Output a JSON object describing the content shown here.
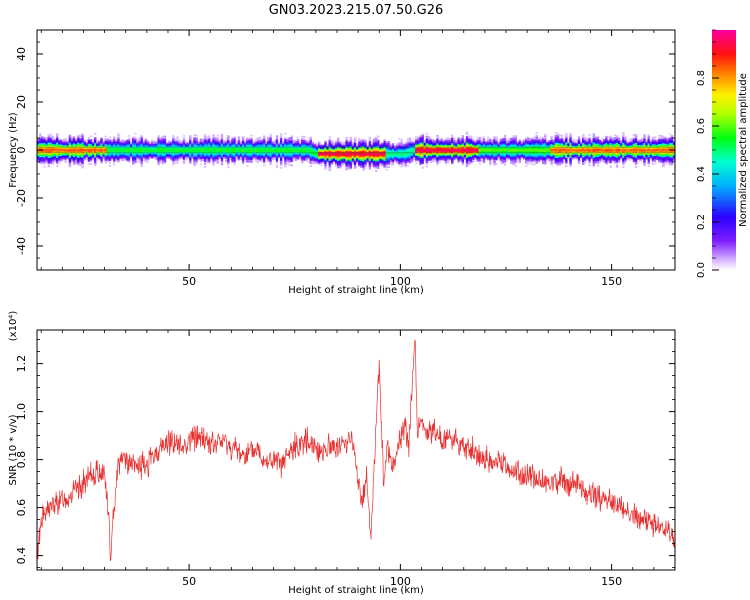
{
  "figure_title": "GN03.2023.215.07.50.G26",
  "chart_data": [
    {
      "type": "heatmap",
      "xlabel": "Height of straight line (km)",
      "ylabel": "Frequency (Hz)",
      "xlim": [
        14,
        165
      ],
      "ylim": [
        -50,
        50
      ],
      "x_ticks": [
        50,
        100,
        150
      ],
      "y_ticks": [
        -40,
        -20,
        0,
        20,
        40
      ],
      "colorbar": {
        "label": "Normalized spectral amplitude",
        "range": [
          0,
          1
        ],
        "ticks": [
          0.0,
          0.2,
          0.4,
          0.6,
          0.8
        ]
      },
      "grid": false,
      "band_center_hz": [
        {
          "x": 14,
          "f": 0.0
        },
        {
          "x": 78,
          "f": 0.0
        },
        {
          "x": 80,
          "f": -1.5
        },
        {
          "x": 101,
          "f": -1.5
        },
        {
          "x": 103,
          "f": 0.0
        },
        {
          "x": 165,
          "f": 0.0
        }
      ],
      "peak_amplitude_segments": [
        {
          "x_start": 14,
          "x_end": 30,
          "level": 0.85
        },
        {
          "x_start": 30,
          "x_end": 80,
          "level": 0.55
        },
        {
          "x_start": 80,
          "x_end": 96,
          "level": 0.95
        },
        {
          "x_start": 96,
          "x_end": 103,
          "level": 0.5
        },
        {
          "x_start": 103,
          "x_end": 118,
          "level": 0.95
        },
        {
          "x_start": 118,
          "x_end": 135,
          "level": 0.6
        },
        {
          "x_start": 135,
          "x_end": 165,
          "level": 0.85
        }
      ]
    },
    {
      "type": "line",
      "xlabel": "Height of straight line (km)",
      "ylabel": "SNR (10 * v/v)",
      "y_multiplier_label": "(x10⁴)",
      "xlim": [
        14,
        165
      ],
      "ylim": [
        0.34,
        1.34
      ],
      "x_ticks": [
        50,
        100,
        150
      ],
      "y_ticks": [
        0.4,
        0.6,
        0.8,
        1.0,
        1.2
      ],
      "series_color": "#e83030",
      "grid": false,
      "series": [
        {
          "points": [
            [
              14,
              0.4
            ],
            [
              15,
              0.55
            ],
            [
              17,
              0.6
            ],
            [
              19,
              0.62
            ],
            [
              21,
              0.64
            ],
            [
              23,
              0.67
            ],
            [
              25,
              0.7
            ],
            [
              27,
              0.73
            ],
            [
              29,
              0.76
            ],
            [
              30,
              0.74
            ],
            [
              31,
              0.55
            ],
            [
              31.5,
              0.36
            ],
            [
              32,
              0.55
            ],
            [
              33,
              0.77
            ],
            [
              34,
              0.82
            ],
            [
              36,
              0.78
            ],
            [
              38,
              0.77
            ],
            [
              40,
              0.78
            ],
            [
              42,
              0.82
            ],
            [
              44,
              0.86
            ],
            [
              46,
              0.88
            ],
            [
              48,
              0.85
            ],
            [
              50,
              0.88
            ],
            [
              52,
              0.9
            ],
            [
              54,
              0.88
            ],
            [
              56,
              0.86
            ],
            [
              58,
              0.88
            ],
            [
              60,
              0.85
            ],
            [
              62,
              0.83
            ],
            [
              64,
              0.82
            ],
            [
              66,
              0.84
            ],
            [
              68,
              0.8
            ],
            [
              70,
              0.79
            ],
            [
              72,
              0.78
            ],
            [
              74,
              0.83
            ],
            [
              76,
              0.87
            ],
            [
              78,
              0.88
            ],
            [
              80,
              0.85
            ],
            [
              82,
              0.84
            ],
            [
              84,
              0.86
            ],
            [
              86,
              0.85
            ],
            [
              88,
              0.9
            ],
            [
              89,
              0.84
            ],
            [
              90,
              0.72
            ],
            [
              91,
              0.6
            ],
            [
              92,
              0.75
            ],
            [
              93,
              0.46
            ],
            [
              94,
              0.85
            ],
            [
              95,
              1.2
            ],
            [
              96,
              0.7
            ],
            [
              97,
              0.85
            ],
            [
              98,
              0.78
            ],
            [
              99,
              0.8
            ],
            [
              100,
              0.9
            ],
            [
              101,
              0.95
            ],
            [
              102,
              0.85
            ],
            [
              103,
              1.18
            ],
            [
              103.5,
              1.33
            ],
            [
              104,
              0.9
            ],
            [
              105,
              0.95
            ],
            [
              106,
              0.9
            ],
            [
              108,
              0.92
            ],
            [
              110,
              0.88
            ],
            [
              112,
              0.9
            ],
            [
              114,
              0.86
            ],
            [
              116,
              0.85
            ],
            [
              118,
              0.82
            ],
            [
              120,
              0.8
            ],
            [
              122,
              0.78
            ],
            [
              124,
              0.79
            ],
            [
              126,
              0.76
            ],
            [
              128,
              0.74
            ],
            [
              130,
              0.73
            ],
            [
              132,
              0.72
            ],
            [
              134,
              0.71
            ],
            [
              136,
              0.7
            ],
            [
              138,
              0.72
            ],
            [
              140,
              0.7
            ],
            [
              142,
              0.69
            ],
            [
              144,
              0.67
            ],
            [
              146,
              0.65
            ],
            [
              148,
              0.63
            ],
            [
              150,
              0.63
            ],
            [
              152,
              0.6
            ],
            [
              154,
              0.58
            ],
            [
              156,
              0.55
            ],
            [
              158,
              0.55
            ],
            [
              160,
              0.53
            ],
            [
              162,
              0.5
            ],
            [
              164,
              0.48
            ],
            [
              165,
              0.46
            ]
          ],
          "noise_envelope": 0.09
        }
      ]
    }
  ]
}
